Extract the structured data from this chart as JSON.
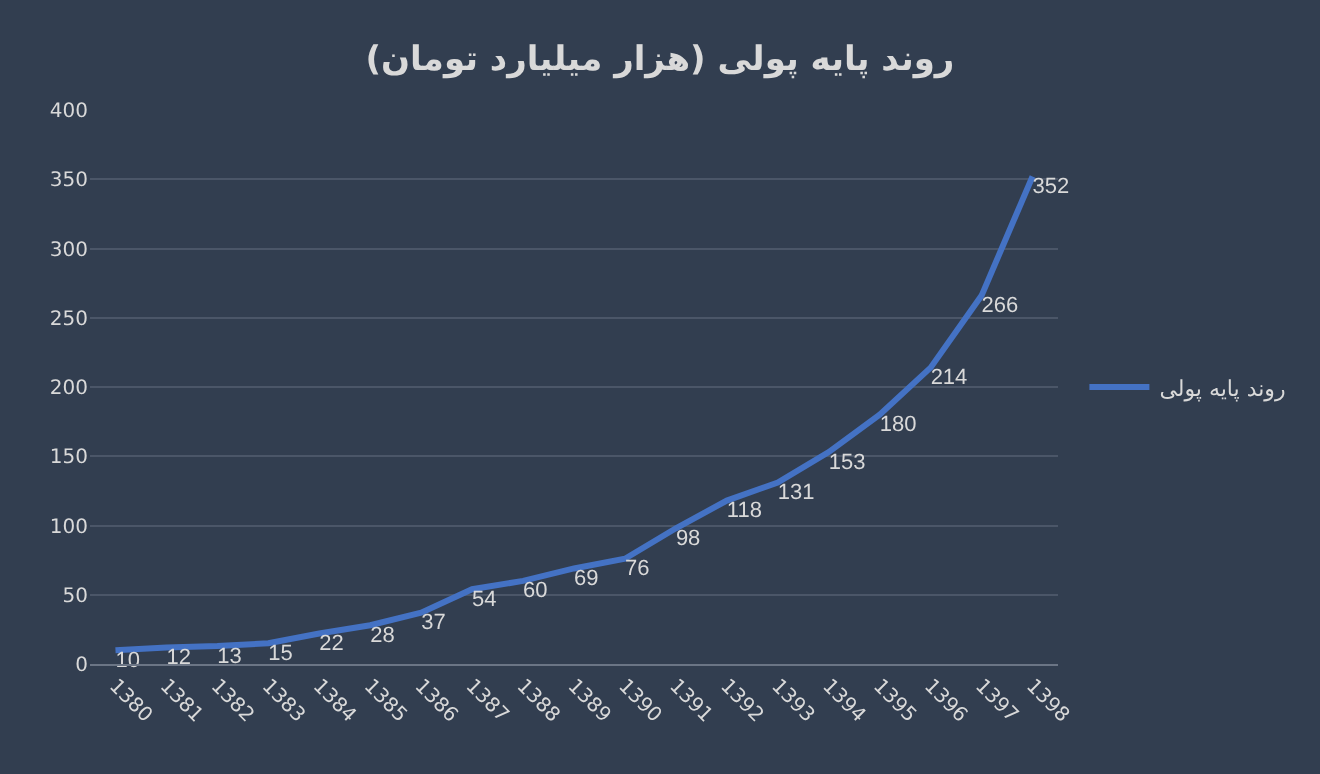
{
  "chart_data": {
    "type": "line",
    "title": "روند پایه پولی (هزار میلیارد تومان)",
    "categories": [
      "1380",
      "1381",
      "1382",
      "1383",
      "1384",
      "1385",
      "1386",
      "1387",
      "1388",
      "1389",
      "1390",
      "1391",
      "1392",
      "1393",
      "1394",
      "1395",
      "1396",
      "1397",
      "1398"
    ],
    "series": [
      {
        "name": "روند پایه پولی",
        "color": "#4472c4",
        "values": [
          10,
          12,
          13,
          15,
          22,
          28,
          37,
          54,
          60,
          69,
          76,
          98,
          118,
          131,
          153,
          180,
          214,
          266,
          352
        ]
      }
    ],
    "ylim": [
      0,
      400
    ],
    "yticks": [
      0,
      50,
      100,
      150,
      200,
      250,
      300,
      350,
      400
    ],
    "grid": "y",
    "legend": "right",
    "data_labels": true,
    "marker": "none",
    "line_style": "solid"
  }
}
